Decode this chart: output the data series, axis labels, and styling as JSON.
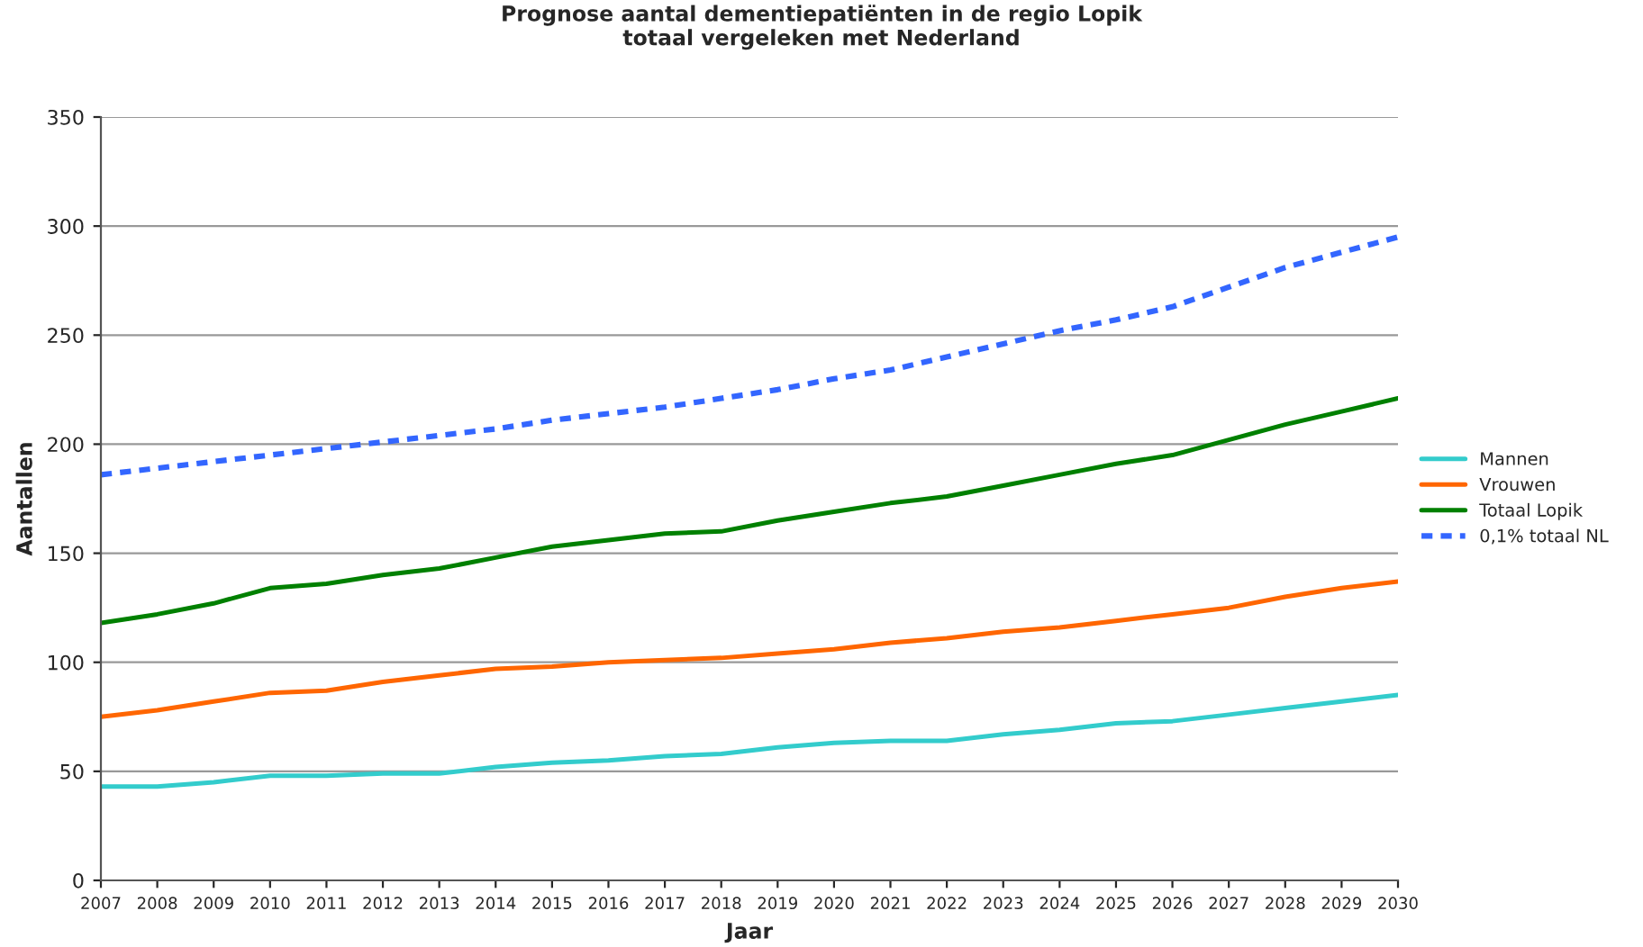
{
  "chart_data": {
    "type": "line",
    "title": "Prognose aantal dementiepatiënten in de regio Lopik\ntotaal vergeleken met Nederland",
    "xlabel": "Jaar",
    "ylabel": "Aantallen",
    "x": [
      2007,
      2008,
      2009,
      2010,
      2011,
      2012,
      2013,
      2014,
      2015,
      2016,
      2017,
      2018,
      2019,
      2020,
      2021,
      2022,
      2023,
      2024,
      2025,
      2026,
      2027,
      2028,
      2029,
      2030
    ],
    "xlim": [
      2007,
      2030
    ],
    "xticks": [
      2007,
      2008,
      2009,
      2010,
      2011,
      2012,
      2013,
      2014,
      2015,
      2016,
      2017,
      2018,
      2019,
      2020,
      2021,
      2022,
      2023,
      2024,
      2025,
      2026,
      2027,
      2028,
      2029,
      2030
    ],
    "ylim": [
      0,
      350
    ],
    "yticks": [
      0,
      50,
      100,
      150,
      200,
      250,
      300,
      350
    ],
    "grid": "y",
    "legend": "right",
    "marker": "none",
    "series": [
      {
        "name": "Mannen",
        "color": "#33cccc",
        "line_style": "solid",
        "values": [
          43,
          43,
          45,
          48,
          48,
          49,
          49,
          52,
          54,
          55,
          57,
          58,
          61,
          63,
          64,
          64,
          67,
          69,
          72,
          73,
          76,
          79,
          82,
          85
        ]
      },
      {
        "name": "Vrouwen",
        "color": "#ff6600",
        "line_style": "solid",
        "values": [
          75,
          78,
          82,
          86,
          87,
          91,
          94,
          97,
          98,
          100,
          101,
          102,
          104,
          106,
          109,
          111,
          114,
          116,
          119,
          122,
          125,
          130,
          134,
          137
        ]
      },
      {
        "name": "Totaal Lopik",
        "color": "#008000",
        "line_style": "solid",
        "values": [
          118,
          122,
          127,
          134,
          136,
          140,
          143,
          148,
          153,
          156,
          159,
          160,
          165,
          169,
          173,
          176,
          181,
          186,
          191,
          195,
          202,
          209,
          215,
          221
        ]
      },
      {
        "name": "0,1% totaal NL",
        "color": "#3366ff",
        "line_style": "dotted",
        "values": [
          186,
          189,
          192,
          195,
          198,
          201,
          204,
          207,
          211,
          214,
          217,
          221,
          225,
          230,
          234,
          240,
          246,
          252,
          257,
          263,
          272,
          281,
          288,
          295
        ]
      }
    ]
  }
}
